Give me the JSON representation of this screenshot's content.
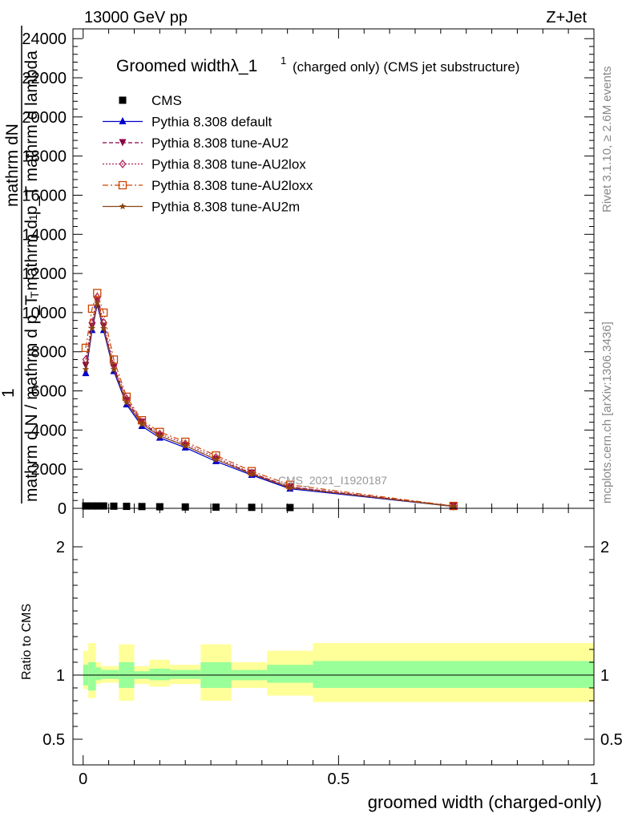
{
  "header": {
    "left": "13000 GeV pp",
    "right": "Z+Jet"
  },
  "side_text": {
    "rivet": "Rivet 3.1.10, ≥ 2.6M events",
    "mcplots": "mcplots.cern.ch [arXiv:1306.3436]"
  },
  "watermark": "CMS_2021_I1920187",
  "chart_data": [
    {
      "type": "line",
      "title": "Groomed widthλ_1",
      "title_sup": "1",
      "title_note": "(charged only) (CMS jet substructure)",
      "ylabel": {
        "numerator": "mathrm dN",
        "numerator_sub": "1",
        "denominator": "mathrm d N / mathrm d p_T mathrm d p_T mathrm d lambda",
        "denominator_sub": "T",
        "prefix": "1"
      },
      "ylim": [
        0,
        24500
      ],
      "xlim": [
        -0.02,
        1.0
      ],
      "yticks": [
        {
          "value": 0,
          "label": "0"
        },
        {
          "value": 2000,
          "label": "2000"
        },
        {
          "value": 4000,
          "label": "4000"
        },
        {
          "value": 6000,
          "label": "6000"
        },
        {
          "value": 8000,
          "label": "8000"
        },
        {
          "value": 10000,
          "label": "10000"
        },
        {
          "value": 12000,
          "label": "12000"
        },
        {
          "value": 14000,
          "label": "14000"
        },
        {
          "value": 16000,
          "label": "16000"
        },
        {
          "value": 18000,
          "label": "18000"
        },
        {
          "value": 20000,
          "label": "20000"
        },
        {
          "value": 22000,
          "label": "22000"
        },
        {
          "value": 24000,
          "label": "24000"
        }
      ],
      "legend_position": "top-left",
      "x": [
        0.005,
        0.0175,
        0.0275,
        0.04,
        0.06,
        0.085,
        0.115,
        0.15,
        0.2,
        0.26,
        0.33,
        0.405,
        0.725
      ],
      "series": [
        {
          "name": "CMS",
          "color": "#000000",
          "marker": "square",
          "dash": "none",
          "values": [
            120,
            120,
            120,
            120,
            110,
            100,
            90,
            80,
            70,
            60,
            50,
            40,
            0
          ]
        },
        {
          "name": "Pythia 8.308 default",
          "color": "#0000cc",
          "marker": "triangle-up",
          "dash": "solid",
          "values": [
            6900,
            9100,
            10400,
            9100,
            7000,
            5300,
            4200,
            3600,
            3100,
            2400,
            1700,
            1000,
            100
          ]
        },
        {
          "name": "Pythia 8.308 tune-AU2",
          "color": "#880044",
          "marker": "triangle-down",
          "dash": "dashed",
          "values": [
            7300,
            9300,
            10600,
            9300,
            7200,
            5500,
            4400,
            3700,
            3200,
            2500,
            1800,
            1100,
            110
          ]
        },
        {
          "name": "Pythia 8.308 tune-AU2lox",
          "color": "#aa2255",
          "marker": "diamond-open",
          "dash": "dotted",
          "values": [
            7600,
            9500,
            10800,
            9500,
            7300,
            5600,
            4400,
            3800,
            3300,
            2600,
            1800,
            1100,
            110
          ]
        },
        {
          "name": "Pythia 8.308 tune-AU2loxx",
          "color": "#cc4400",
          "marker": "square-open",
          "dash": "dash-dot",
          "values": [
            8200,
            10200,
            11000,
            10000,
            7600,
            5700,
            4500,
            3900,
            3400,
            2700,
            1900,
            1200,
            120
          ]
        },
        {
          "name": "Pythia 8.308 tune-AU2m",
          "color": "#8b4513",
          "marker": "star",
          "dash": "solid",
          "values": [
            7100,
            9200,
            10500,
            9200,
            7100,
            5400,
            4300,
            3700,
            3200,
            2500,
            1750,
            1050,
            100
          ]
        }
      ]
    },
    {
      "type": "area",
      "ylabel": "Ratio to CMS",
      "xlabel": "groomed width (charged-only)",
      "ylim": [
        0.3,
        2.3
      ],
      "xlim": [
        -0.02,
        1.0
      ],
      "yticks": [
        {
          "value": 0.5,
          "label": "0.5"
        },
        {
          "value": 1,
          "label": "1"
        },
        {
          "value": 2,
          "label": "2"
        }
      ],
      "xticks": [
        {
          "value": 0,
          "label": "0"
        },
        {
          "value": 0.5,
          "label": "0.5"
        },
        {
          "value": 1,
          "label": "1"
        }
      ],
      "bands": {
        "x_edges": [
          0.0,
          0.01,
          0.025,
          0.035,
          0.07,
          0.1,
          0.13,
          0.17,
          0.23,
          0.29,
          0.36,
          0.45,
          1.0
        ],
        "inner_color": "#99ff99",
        "outer_color": "#ffff99",
        "inner": [
          [
            0.92,
            1.08
          ],
          [
            0.88,
            1.1
          ],
          [
            0.96,
            1.06
          ],
          [
            0.97,
            1.04
          ],
          [
            0.9,
            1.1
          ],
          [
            0.97,
            1.03
          ],
          [
            0.96,
            1.05
          ],
          [
            0.97,
            1.04
          ],
          [
            0.9,
            1.1
          ],
          [
            0.96,
            1.04
          ],
          [
            0.94,
            1.08
          ],
          [
            0.9,
            1.11
          ]
        ],
        "outer": [
          [
            0.89,
            1.19
          ],
          [
            0.82,
            1.25
          ],
          [
            0.93,
            1.1
          ],
          [
            0.94,
            1.07
          ],
          [
            0.8,
            1.24
          ],
          [
            0.93,
            1.07
          ],
          [
            0.91,
            1.12
          ],
          [
            0.93,
            1.08
          ],
          [
            0.8,
            1.24
          ],
          [
            0.9,
            1.1
          ],
          [
            0.84,
            1.19
          ],
          [
            0.79,
            1.25
          ]
        ]
      },
      "reference_line": 1
    }
  ]
}
